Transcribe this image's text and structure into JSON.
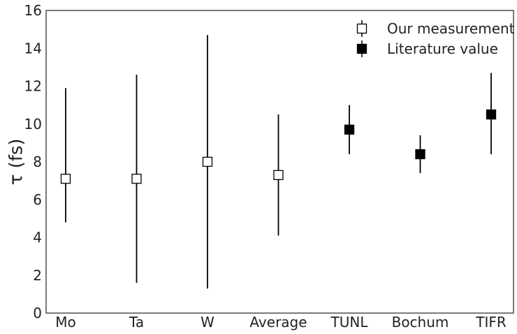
{
  "chart_data": {
    "type": "scatter",
    "title": "",
    "xlabel": "",
    "ylabel": "τ (fs)",
    "ylim": [
      0,
      16
    ],
    "yticks": [
      0,
      2,
      4,
      6,
      8,
      10,
      12,
      14,
      16
    ],
    "categories": [
      "Mo",
      "Ta",
      "W",
      "Average",
      "TUNL",
      "Bochum",
      "TIFR"
    ],
    "grid": false,
    "legend_position": "top-right",
    "series": [
      {
        "name": "Our measurement",
        "marker": "open-square",
        "color": "#000000",
        "points": [
          {
            "category": "Mo",
            "y": 7.1,
            "y_low": 4.8,
            "y_high": 11.9
          },
          {
            "category": "Ta",
            "y": 7.1,
            "y_low": 1.6,
            "y_high": 12.6
          },
          {
            "category": "W",
            "y": 8.0,
            "y_low": 1.3,
            "y_high": 14.7
          },
          {
            "category": "Average",
            "y": 7.3,
            "y_low": 4.1,
            "y_high": 10.5
          }
        ]
      },
      {
        "name": "Literature value",
        "marker": "filled-square",
        "color": "#000000",
        "points": [
          {
            "category": "TUNL",
            "y": 9.7,
            "y_low": 8.4,
            "y_high": 11.0
          },
          {
            "category": "Bochum",
            "y": 8.4,
            "y_low": 7.4,
            "y_high": 9.4
          },
          {
            "category": "TIFR",
            "y": 10.5,
            "y_low": 8.4,
            "y_high": 12.7
          }
        ]
      }
    ]
  }
}
